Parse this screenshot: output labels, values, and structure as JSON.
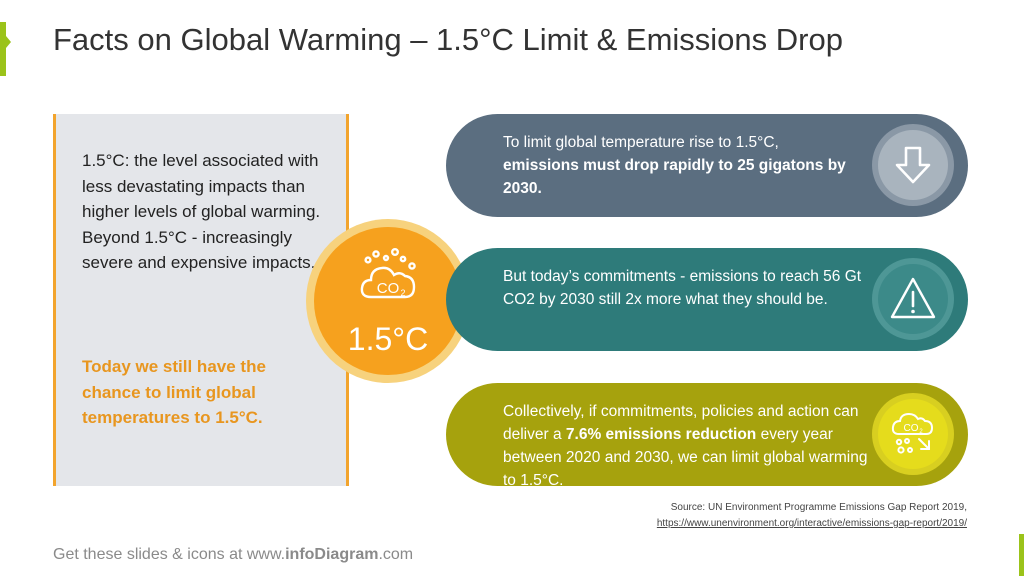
{
  "title": "Facts on Global Warming – 1.5°C Limit & Emissions Drop",
  "left_panel": {
    "body": "1.5°C: the level associated with less devastating impacts than higher levels of global warming. Beyond 1.5°C - increasingly severe and expensive impacts.",
    "highlight": "Today we still have the chance to limit global temperatures to 1.5°C."
  },
  "center": {
    "icon": "co2-cloud-icon",
    "value": "1.5°C"
  },
  "pills": [
    {
      "text_before": "To limit global temperature rise to 1.5°C,",
      "text_bold": "emissions must drop rapidly to 25 gigatons by 2030.",
      "text_after": "",
      "icon": "arrow-down-icon",
      "color": "#5b6e80"
    },
    {
      "text_before": "But today’s commitments - emissions to reach 56 Gt CO2 by 2030 still 2x more what they should be.",
      "text_bold": "",
      "text_after": "",
      "icon": "warning-icon",
      "color": "#2e7b7a"
    },
    {
      "text_before": "Collectively, if commitments, policies and action can deliver a",
      "text_bold": "7.6% emissions reduction",
      "text_after": "every year between 2020 and 2030, we can limit global warming to 1.5°C.",
      "icon": "co2-reduction-icon",
      "color": "#a6a20d"
    }
  ],
  "source": {
    "line1": "Source: UN Environment Programme Emissions Gap Report 2019,",
    "line2": "https://www.unenvironment.org/interactive/emissions-gap-report/2019/"
  },
  "footer": {
    "prefix": "Get these slides & icons at www.",
    "brand": "infoDiagram",
    "suffix": ".com"
  },
  "colors": {
    "accent_green": "#9bc31a",
    "orange": "#f6a11e",
    "highlight_orange": "#e8961f",
    "panel_bg": "#e4e6ea"
  }
}
